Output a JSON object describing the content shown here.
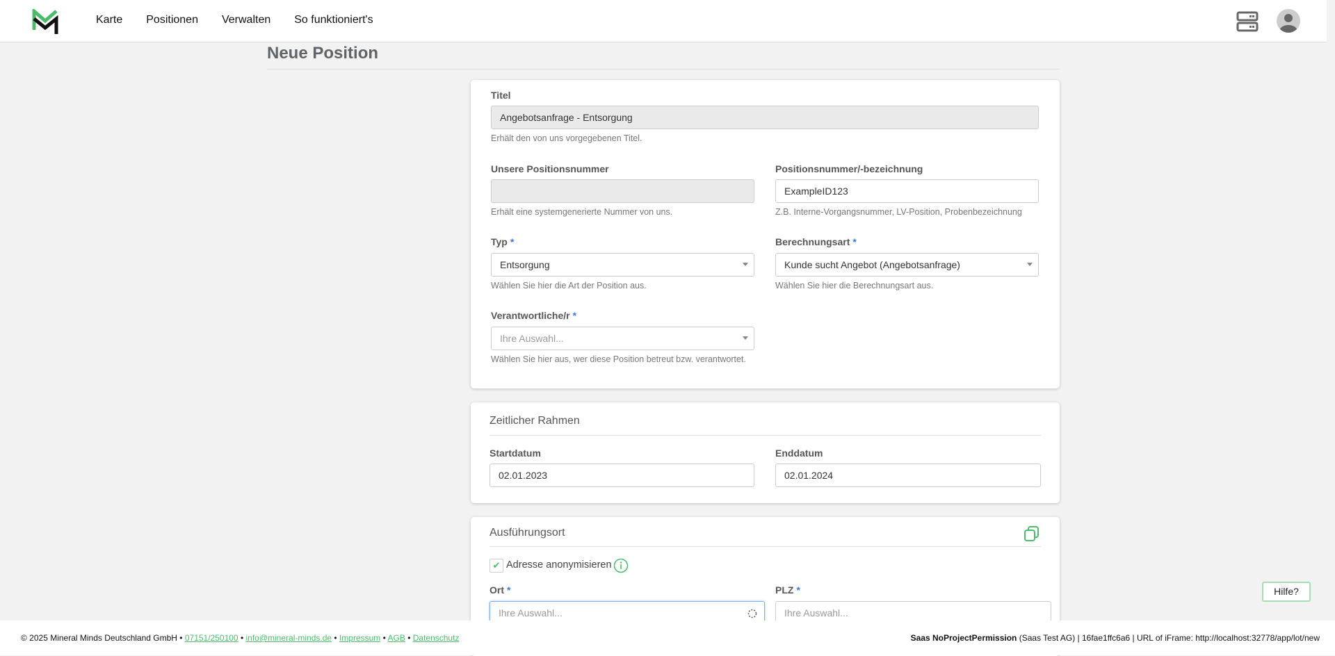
{
  "header": {
    "nav": [
      "Karte",
      "Positionen",
      "Verwalten",
      "So funktioniert's"
    ],
    "brand_color": "#4cbb6c"
  },
  "page": {
    "title": "Neue Position"
  },
  "general": {
    "titel": {
      "label": "Titel",
      "value": "Angebotsanfrage - Entsorgung",
      "help": "Erhält den von uns vorgegebenen Titel."
    },
    "unsere_nr": {
      "label": "Unsere Positionsnummer",
      "value": "",
      "help": "Erhält eine systemgenerierte Nummer von uns."
    },
    "pos_nr": {
      "label": "Positionsnummer/-bezeichnung",
      "value": "ExampleID123",
      "help": "Z.B. Interne-Vorgangsnummer, LV-Position, Probenbezeichnung"
    },
    "typ": {
      "label": "Typ",
      "required": "*",
      "value": "Entsorgung",
      "help": "Wählen Sie hier die Art der Position aus."
    },
    "berechnung": {
      "label": "Berechnungsart",
      "required": "*",
      "value": "Kunde sucht Angebot (Angebotsanfrage)",
      "help": "Wählen Sie hier die Berechnungsart aus."
    },
    "verantwortlich": {
      "label": "Verantwortliche/r",
      "required": "*",
      "placeholder": "Ihre Auswahl...",
      "help": "Wählen Sie hier aus, wer diese Position betreut bzw. verantwortet."
    }
  },
  "zeit": {
    "title": "Zeitlicher Rahmen",
    "start": {
      "label": "Startdatum",
      "value": "02.01.2023"
    },
    "ende": {
      "label": "Enddatum",
      "value": "02.01.2024"
    }
  },
  "ort": {
    "title": "Ausführungsort",
    "anonym": {
      "label": "Adresse anonymisieren",
      "checked": true
    },
    "ort": {
      "label": "Ort",
      "required": "*",
      "placeholder": "Ihre Auswahl..."
    },
    "plz": {
      "label": "PLZ",
      "required": "*",
      "placeholder": "Ihre Auswahl..."
    }
  },
  "hilfe": "Hilfe?",
  "footer": {
    "copyright": "© 2025 Mineral Minds Deutschland GmbH",
    "sep": "•",
    "phone": "07151/250100",
    "email": "info@mineral-minds.de",
    "impressum": "Impressum",
    "agb": "AGB",
    "datenschutz": "Datenschutz",
    "user": "Saas NoProjectPermission",
    "company": "(Saas Test AG)",
    "info": "| 16fae1ffc6a6 | URL of iFrame: http://localhost:32778/app/lot/new"
  }
}
